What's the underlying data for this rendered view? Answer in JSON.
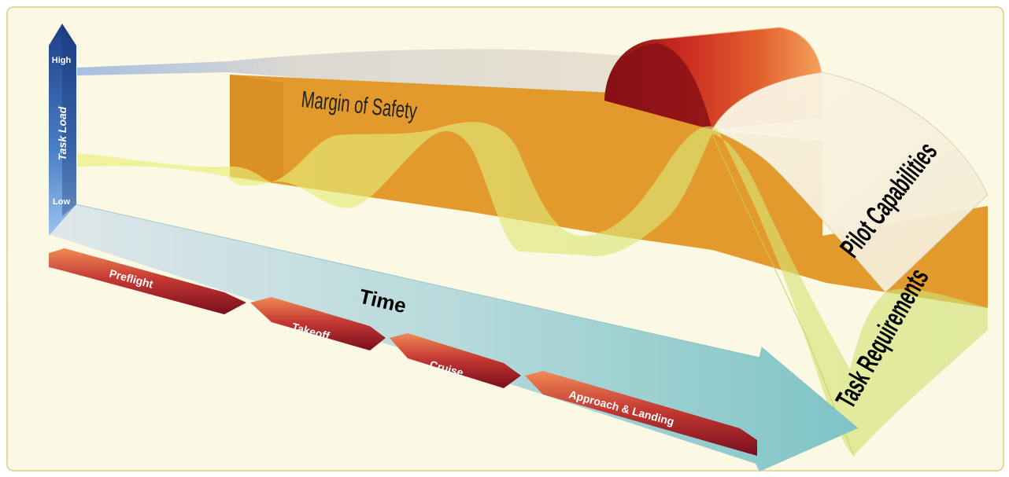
{
  "axis": {
    "y_label": "Task Load",
    "high_label": "High",
    "low_label": "Low",
    "x_label": "Time"
  },
  "bands": {
    "margin_label": "Margin of Safety",
    "capabilities_label": "Pilot Capabilities",
    "requirements_label": "Task Requirements"
  },
  "phases": [
    {
      "label": "Preflight"
    },
    {
      "label": "Takeoff"
    },
    {
      "label": "Cruise"
    },
    {
      "label": "Approach & Landing"
    }
  ],
  "colors": {
    "background": "#fbf8e4",
    "border": "#d9cf7a",
    "axis_blue": "#2f5fa8",
    "time_arrow": "#8fc9cc",
    "margin_orange": "#e29a2c",
    "capability_red": "#c2281f",
    "requirement_yellow": "#e8e35c",
    "phase_red": "#a01a26"
  }
}
